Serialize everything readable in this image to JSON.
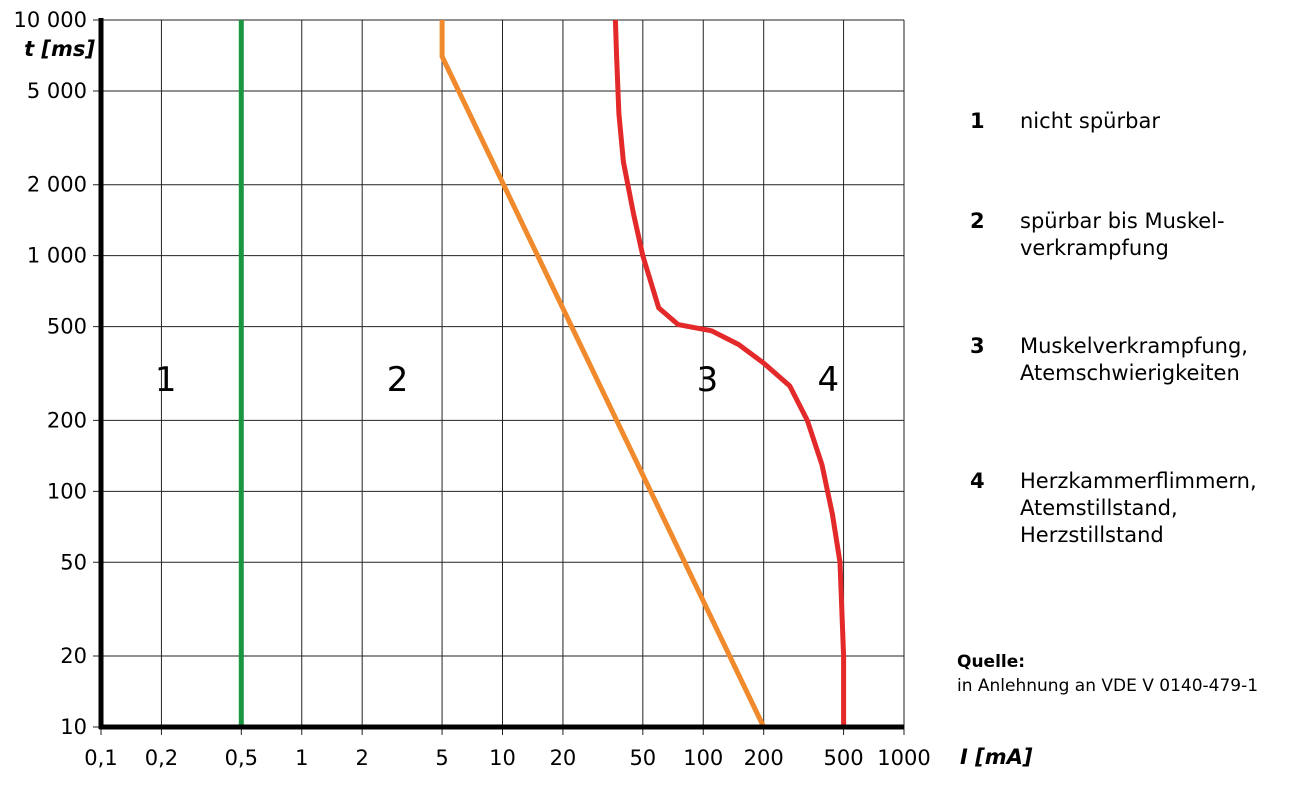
{
  "chart_data": {
    "type": "line",
    "x_scale": "log",
    "y_scale": "log",
    "xlabel": "I [mA]",
    "ylabel": "t [ms]",
    "xlim": [
      0.1,
      1000
    ],
    "ylim": [
      10,
      10000
    ],
    "x_ticks": [
      0.1,
      0.2,
      0.5,
      1,
      2,
      5,
      10,
      20,
      50,
      100,
      200,
      500,
      1000
    ],
    "x_tick_labels": [
      "0,1",
      "0,2",
      "0,5",
      "1",
      "2",
      "5",
      "10",
      "20",
      "50",
      "100",
      "200",
      "500",
      "1000"
    ],
    "y_ticks": [
      10,
      20,
      50,
      100,
      200,
      500,
      1000,
      2000,
      5000,
      10000
    ],
    "y_tick_labels": [
      "10",
      "20",
      "50",
      "100",
      "200",
      "500",
      "1 000",
      "2 000",
      "5 000",
      "10 000"
    ],
    "grid": true,
    "series": [
      {
        "color": "#1a9641",
        "x": [
          0.5,
          0.5
        ],
        "y": [
          10,
          10000
        ]
      },
      {
        "color": "#f08a2c",
        "x": [
          200,
          5,
          5
        ],
        "y": [
          10,
          7000,
          10000
        ]
      },
      {
        "color": "#e32929",
        "x": [
          500,
          500,
          480,
          440,
          390,
          330,
          270,
          200,
          150,
          110,
          90,
          75,
          60,
          50,
          45,
          40,
          38,
          37,
          36.5
        ],
        "y": [
          10,
          20,
          50,
          80,
          130,
          200,
          280,
          350,
          420,
          480,
          495,
          510,
          600,
          1000,
          1500,
          2500,
          4000,
          7000,
          10000
        ]
      }
    ],
    "region_labels": [
      {
        "text": "1",
        "x": 0.21,
        "y": 300
      },
      {
        "text": "2",
        "x": 3.0,
        "y": 300
      },
      {
        "text": "3",
        "x": 105,
        "y": 300
      },
      {
        "text": "4",
        "x": 420,
        "y": 300
      }
    ]
  },
  "legend": [
    {
      "num": "1",
      "text": "nicht spürbar"
    },
    {
      "num": "2",
      "text": "spürbar bis Muskel-\nverkrampfung"
    },
    {
      "num": "3",
      "text": "Muskelverkrampfung,\nAtemschwierigkeiten"
    },
    {
      "num": "4",
      "text": "Herzkammerflimmern,\nAtemstillstand,\nHerzstillstand"
    }
  ],
  "source": {
    "label": "Quelle:",
    "text": "in Anlehnung an VDE V 0140-479-1"
  }
}
